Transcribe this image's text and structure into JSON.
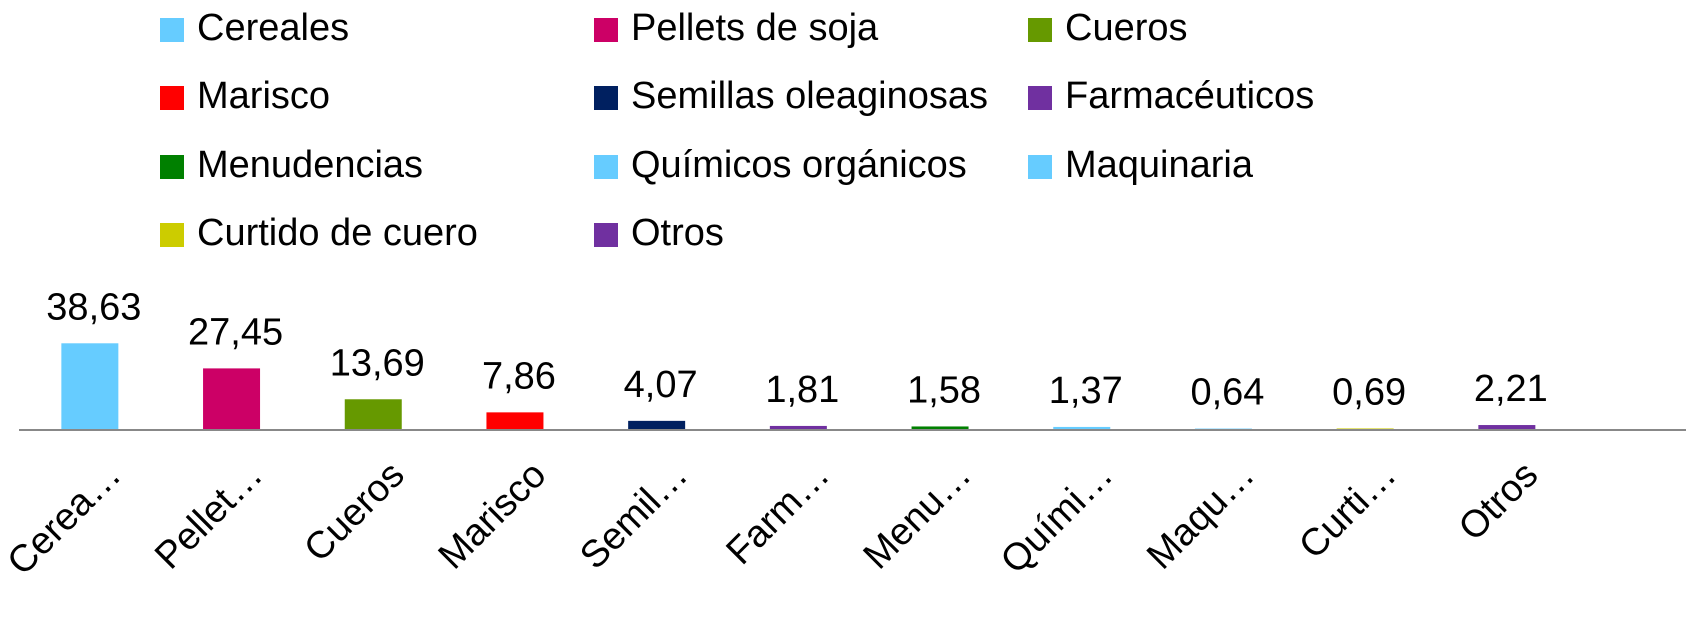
{
  "chart_data": {
    "type": "bar",
    "categories": [
      "Cerea…",
      "Pellet…",
      "Cueros",
      "Marisco",
      "Semil…",
      "Farm…",
      "Menu…",
      "Quími…",
      "Maqu…",
      "Curti…",
      "Otros"
    ],
    "legend": [
      "Cereales",
      "Pellets de soja",
      "Cueros",
      "Marisco",
      "Semillas oleaginosas",
      "Farmacéuticos",
      "Menudencias",
      "Químicos orgánicos",
      "Maquinaria",
      "Curtido de cuero",
      "Otros"
    ],
    "values": [
      38.63,
      27.45,
      13.69,
      7.86,
      4.07,
      1.81,
      1.58,
      1.37,
      0.64,
      0.69,
      2.21
    ],
    "value_labels": [
      "38,63",
      "27,45",
      "13,69",
      "7,86",
      "4,07",
      "1,81",
      "1,58",
      "1,37",
      "0,64",
      "0,69",
      "2,21"
    ],
    "colors": [
      "#66ccff",
      "#cc0066",
      "#669900",
      "#ff0000",
      "#002060",
      "#7030a0",
      "#008000",
      "#66ccff",
      "#66ccff",
      "#cccc00",
      "#7030a0"
    ],
    "ylim": [
      0,
      45
    ]
  }
}
